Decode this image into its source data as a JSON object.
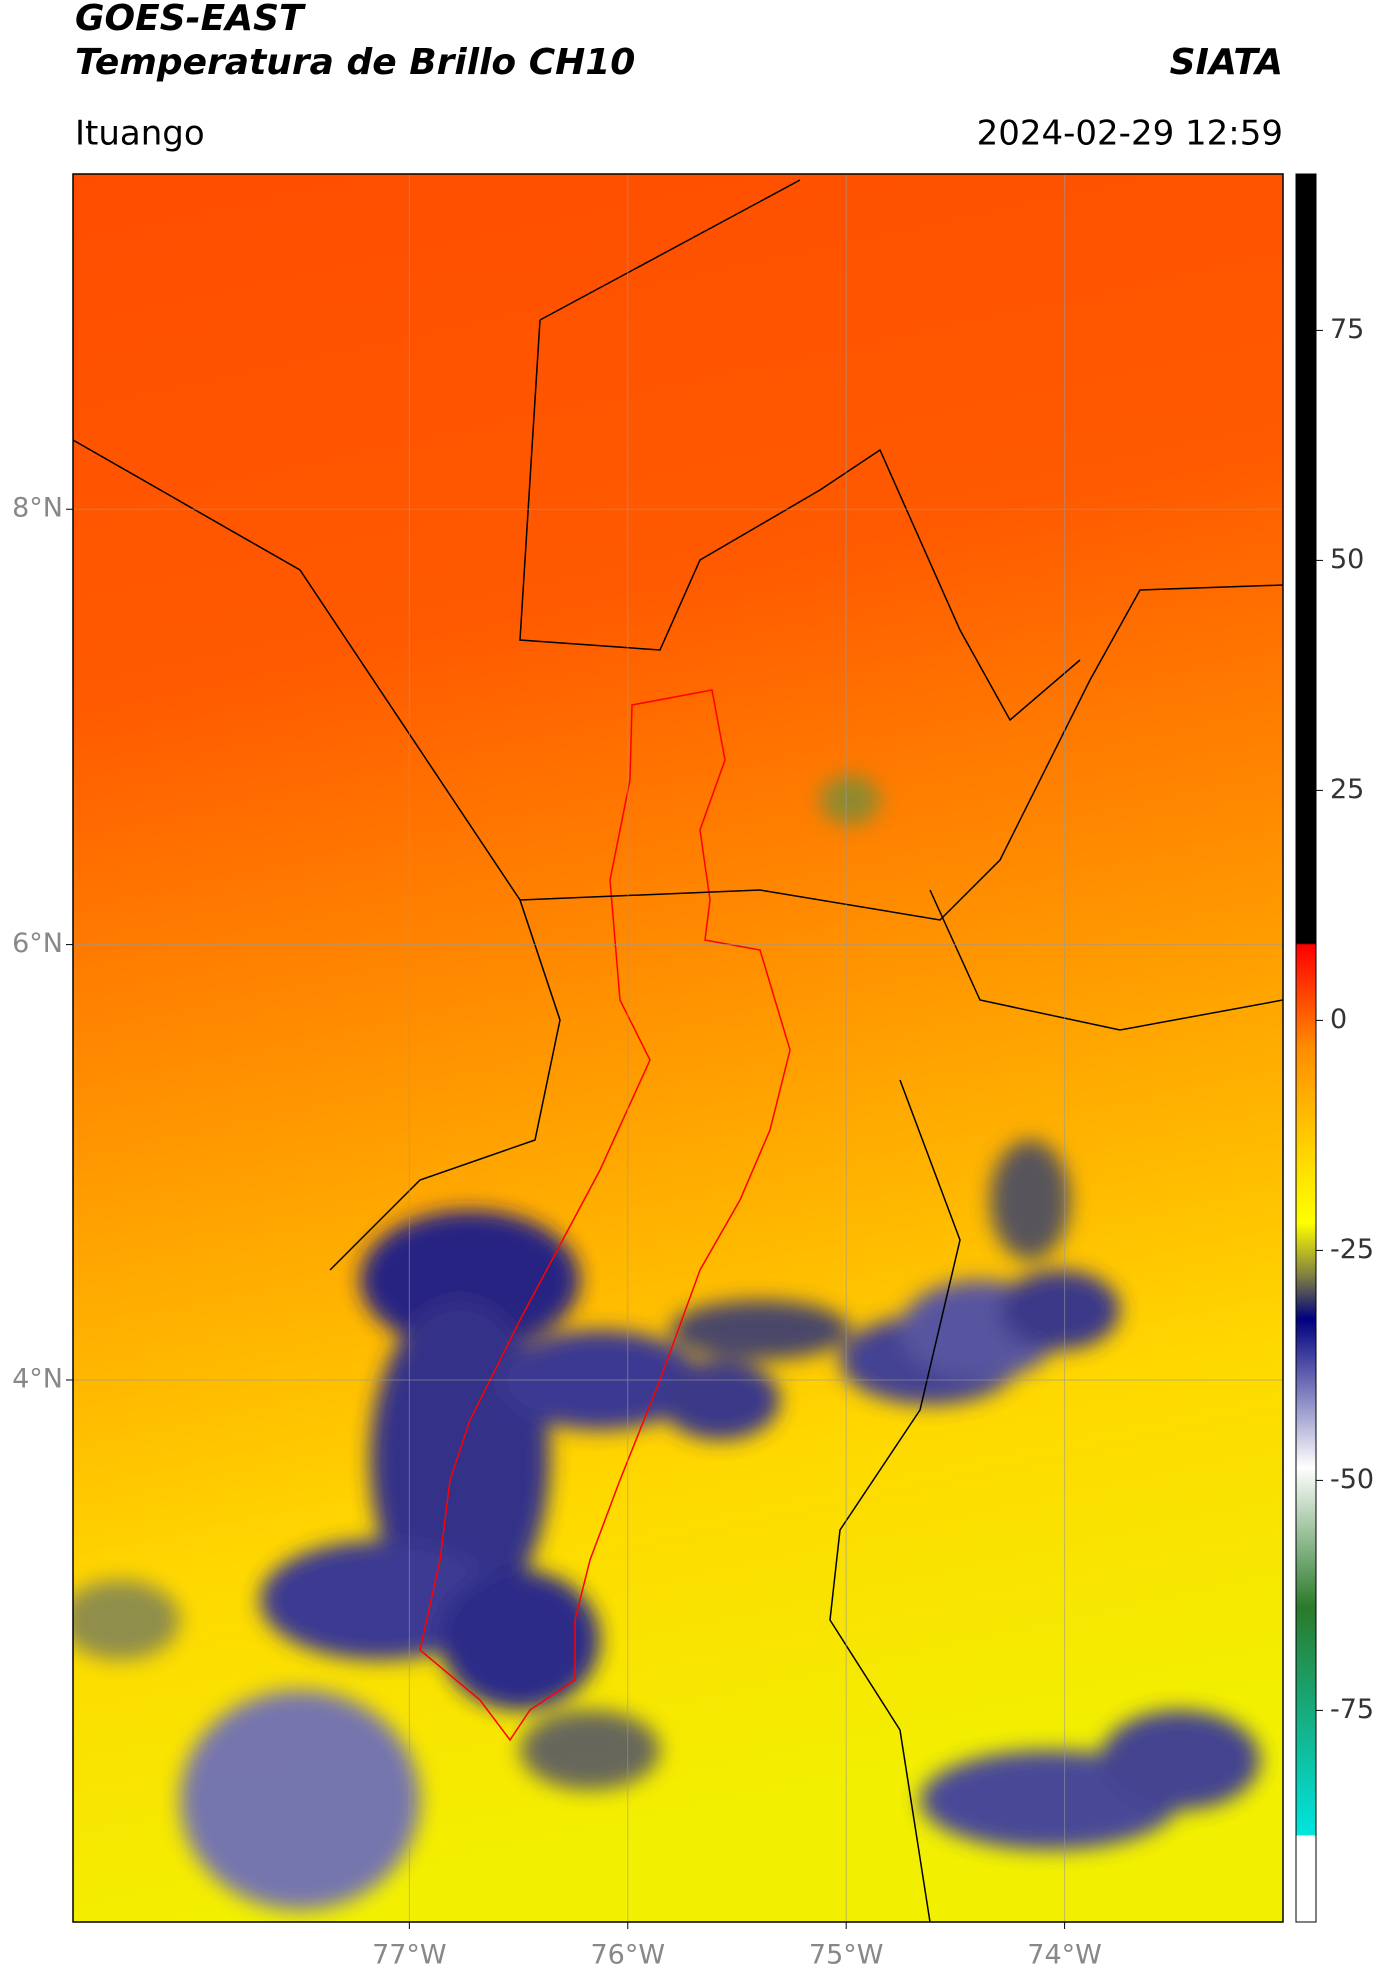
{
  "header": {
    "title": "GOES-EAST",
    "subtitle": "Temperatura de Brillo CH10",
    "source": "SIATA",
    "location": "Ituango",
    "datetime": "2024-02-29 12:59"
  },
  "map": {
    "xlim": [
      -78.54,
      -73.0
    ],
    "ylim": [
      1.51,
      9.54
    ],
    "xticks": [
      {
        "value": -77,
        "label": "77°W"
      },
      {
        "value": -76,
        "label": "76°W"
      },
      {
        "value": -75,
        "label": "75°W"
      },
      {
        "value": -74,
        "label": "74°W"
      }
    ],
    "yticks": [
      {
        "value": 8,
        "label": "8°N"
      },
      {
        "value": 6,
        "label": "6°N"
      },
      {
        "value": 4,
        "label": "4°N"
      }
    ],
    "grid": true
  },
  "colorbar": {
    "clim": [
      -98,
      92
    ],
    "ticks": [
      75,
      50,
      25,
      0,
      -25,
      -50,
      -75
    ]
  }
}
